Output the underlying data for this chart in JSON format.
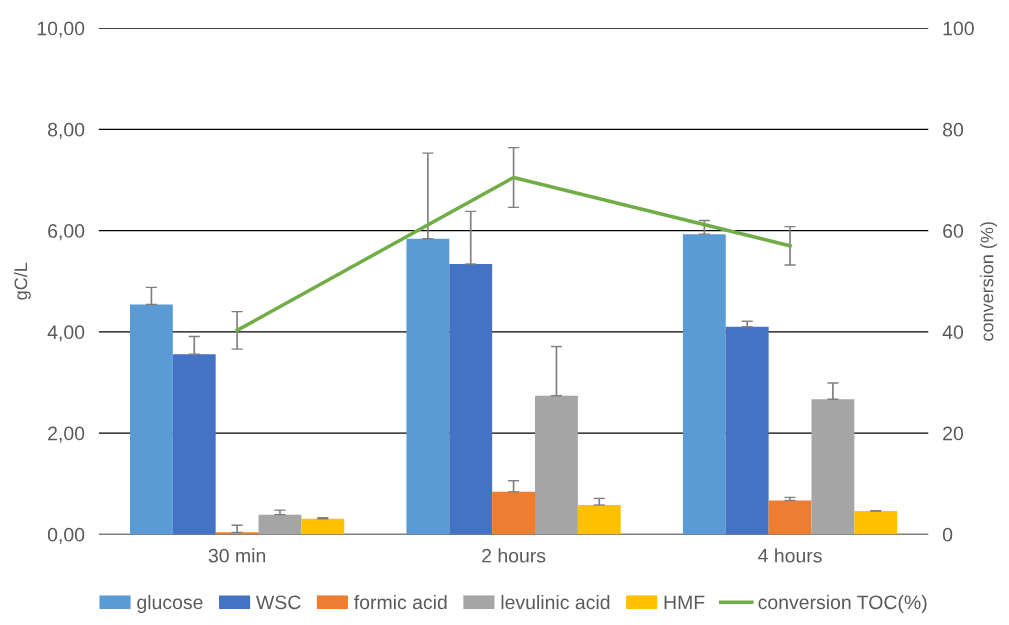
{
  "chart_data": {
    "type": "bar",
    "ylabel": "gC/L",
    "y2label": "conversion (%)",
    "categories": [
      "30 min",
      "2 hours",
      "4 hours"
    ],
    "series": [
      {
        "name": "glucose",
        "color": "#5b9bd5",
        "values": [
          4.54,
          5.84,
          5.93
        ],
        "errors": [
          [
            4.54,
            4.88
          ],
          [
            5.84,
            7.53
          ],
          [
            5.93,
            6.2
          ]
        ]
      },
      {
        "name": "WSC",
        "color": "#4472c4",
        "values": [
          3.56,
          5.34,
          4.1
        ],
        "errors": [
          [
            3.56,
            3.91
          ],
          [
            5.34,
            6.38
          ],
          [
            4.1,
            4.21
          ]
        ]
      },
      {
        "name": "formic acid",
        "color": "#ed7d31",
        "values": [
          0.04,
          0.84,
          0.67
        ],
        "errors": [
          [
            0.04,
            0.18
          ],
          [
            0.84,
            1.06
          ],
          [
            0.67,
            0.73
          ]
        ]
      },
      {
        "name": "levulinic acid",
        "color": "#a5a5a5",
        "values": [
          0.39,
          2.74,
          2.67
        ],
        "errors": [
          [
            0.39,
            0.48
          ],
          [
            2.74,
            3.71
          ],
          [
            2.67,
            2.99
          ]
        ]
      },
      {
        "name": "HMF",
        "color": "#ffc000",
        "values": [
          0.31,
          0.58,
          0.46
        ],
        "errors": [
          [
            0.31,
            0.33
          ],
          [
            0.58,
            0.71
          ],
          [
            0.46,
            0.47
          ]
        ]
      },
      {
        "name": "conversion TOC(%)",
        "type": "line",
        "axis": "y2",
        "color": "#70ad47",
        "values": [
          40.3,
          70.5,
          57.0
        ],
        "errors": [
          3.7,
          5.9,
          3.8
        ]
      }
    ],
    "ylim": [
      0,
      10
    ],
    "yticks": [
      {
        "value": 0,
        "label": "0,00"
      },
      {
        "value": 2,
        "label": "2,00"
      },
      {
        "value": 4,
        "label": "4,00"
      },
      {
        "value": 6,
        "label": "6,00"
      },
      {
        "value": 8,
        "label": "8,00"
      },
      {
        "value": 10,
        "label": "10,00"
      }
    ],
    "y2lim": [
      0,
      100
    ],
    "y2ticks": [
      0,
      20,
      40,
      60,
      80,
      100
    ],
    "grid": "y",
    "legend": "bottom",
    "marker": "none",
    "line_style": "solid"
  }
}
